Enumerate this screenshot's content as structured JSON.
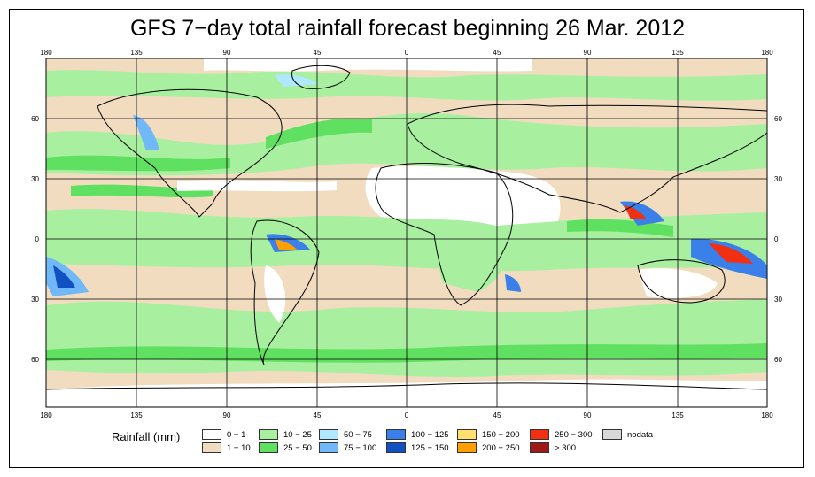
{
  "title": "GFS 7−day total rainfall forecast beginning 26 Mar. 2012",
  "axes": {
    "lon_labels": [
      "180",
      "135",
      "90",
      "45",
      "0",
      "45",
      "90",
      "135",
      "180"
    ],
    "lat_labels": [
      "60",
      "30",
      "0",
      "30",
      "60"
    ]
  },
  "legend": {
    "title": "Rainfall (mm)",
    "items": [
      {
        "label": "0 − 1",
        "color": "#ffffff"
      },
      {
        "label": "1 − 10",
        "color": "#f2dcc0"
      },
      {
        "label": "10 − 25",
        "color": "#a8f0a0"
      },
      {
        "label": "25 − 50",
        "color": "#60e060"
      },
      {
        "label": "50 − 75",
        "color": "#b0e8ff"
      },
      {
        "label": "75 − 100",
        "color": "#70b8f8"
      },
      {
        "label": "100 − 125",
        "color": "#3a80e8"
      },
      {
        "label": "125 − 150",
        "color": "#1050c0"
      },
      {
        "label": "150 − 200",
        "color": "#ffe070"
      },
      {
        "label": "200 − 250",
        "color": "#ffa000"
      },
      {
        "label": "250 − 300",
        "color": "#f03010"
      },
      {
        "label": "> 300",
        "color": "#a01818"
      },
      {
        "label": "nodata",
        "color": "#d8d8d8"
      }
    ]
  }
}
